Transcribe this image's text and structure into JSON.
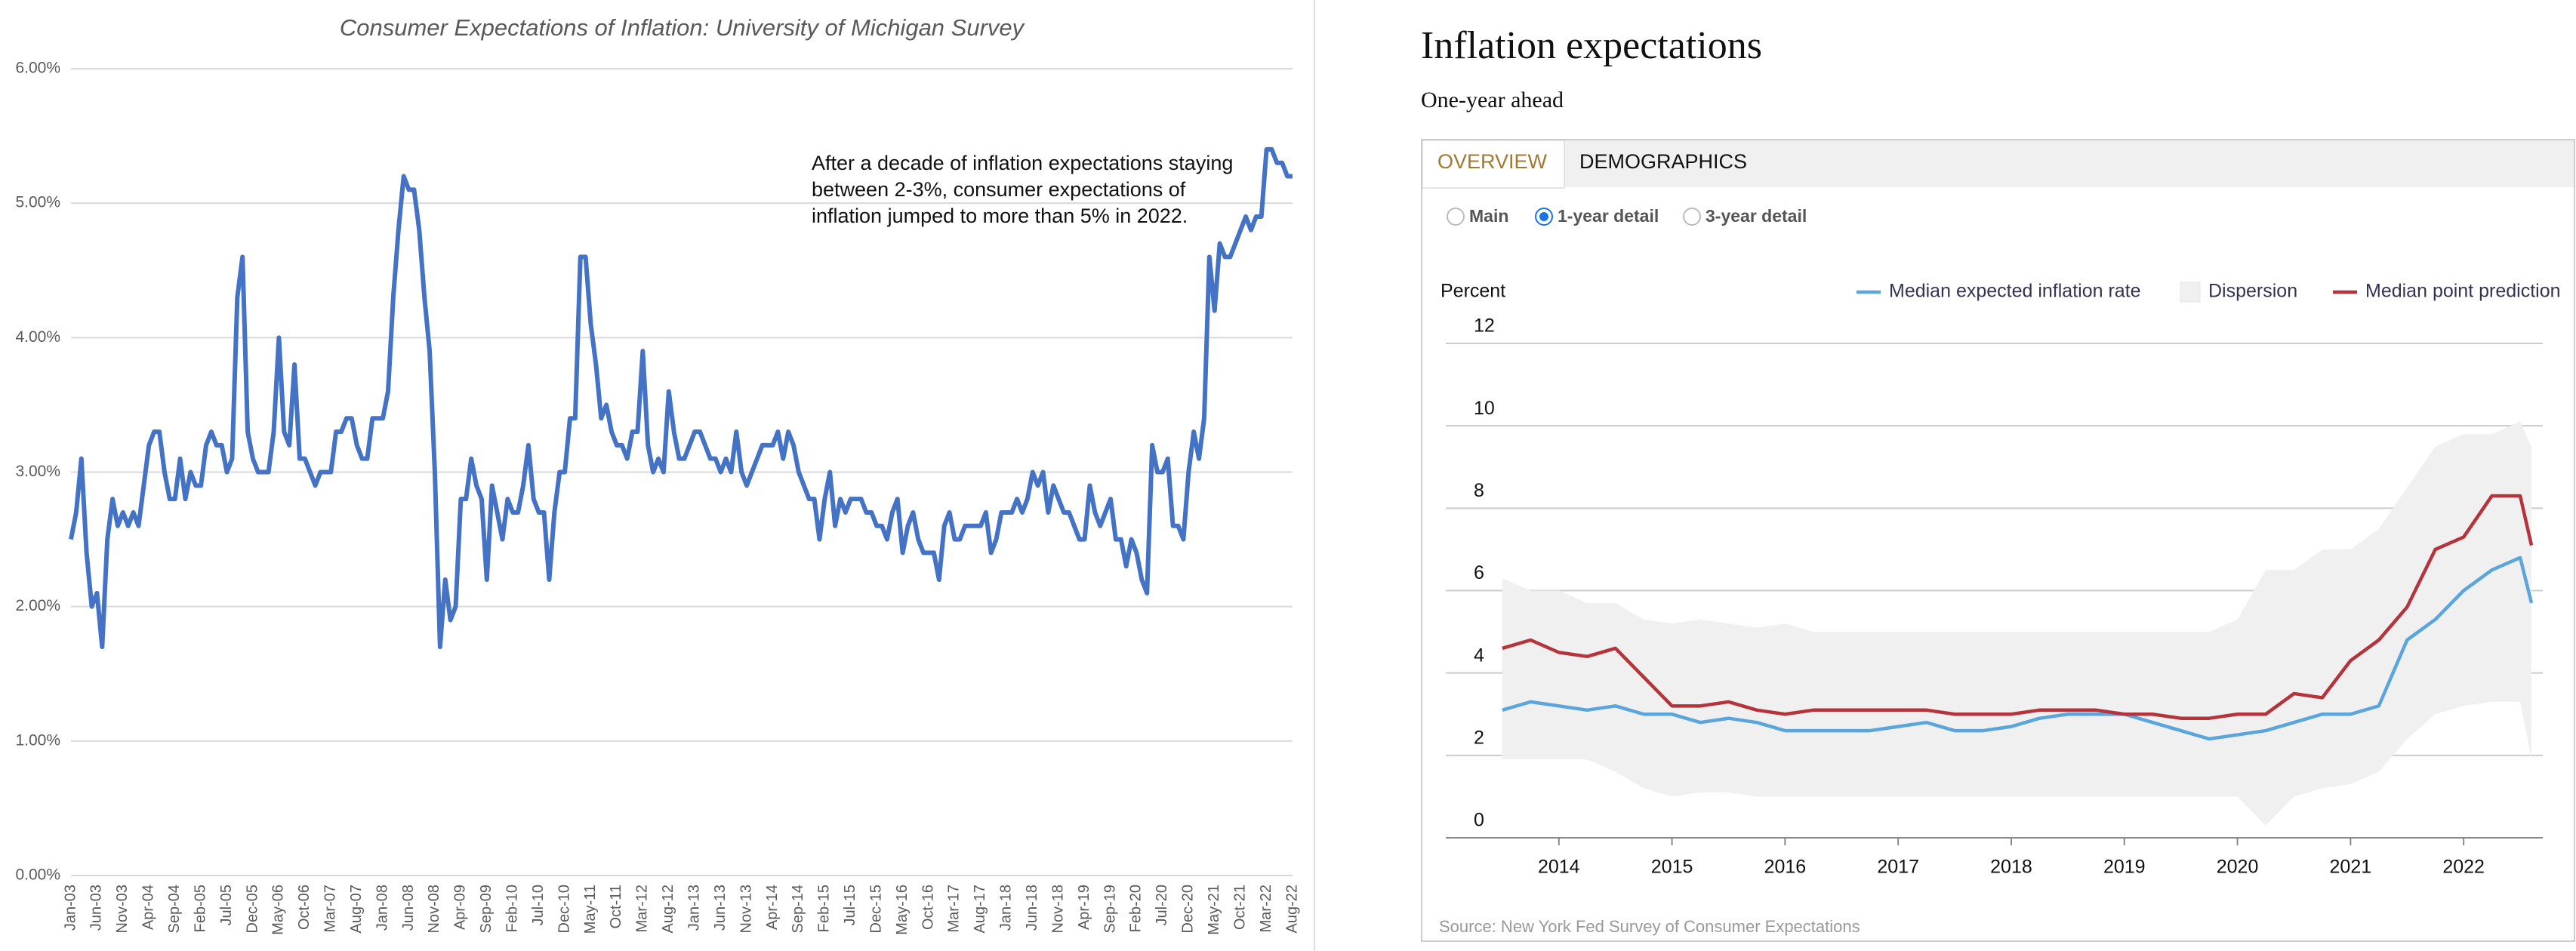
{
  "chart_data": [
    {
      "type": "line",
      "title": "Consumer Expectations of Inflation: University of Michigan Survey",
      "annotation": [
        "After a decade of inflation expectations staying",
        "between 2-3%, consumer expectations of",
        "inflation jumped to more than 5% in 2022."
      ],
      "categories": [
        "Jan-03",
        null,
        null,
        null,
        null,
        "Jun-03",
        null,
        null,
        null,
        null,
        "Nov-03",
        null,
        null,
        null,
        null,
        "Apr-04",
        null,
        null,
        null,
        null,
        "Sep-04",
        null,
        null,
        null,
        null,
        "Feb-05",
        null,
        null,
        null,
        null,
        "Jul-05",
        null,
        null,
        null,
        null,
        "Dec-05",
        null,
        null,
        null,
        null,
        "May-06",
        null,
        null,
        null,
        null,
        "Oct-06",
        null,
        null,
        null,
        null,
        "Mar-07",
        null,
        null,
        null,
        null,
        "Aug-07",
        null,
        null,
        null,
        null,
        "Jan-08",
        null,
        null,
        null,
        null,
        "Jun-08",
        null,
        null,
        null,
        null,
        "Nov-08",
        null,
        null,
        null,
        null,
        "Apr-09",
        null,
        null,
        null,
        null,
        "Sep-09",
        null,
        null,
        null,
        null,
        "Feb-10",
        null,
        null,
        null,
        null,
        "Jul-10",
        null,
        null,
        null,
        null,
        "Dec-10",
        null,
        null,
        null,
        null,
        "May-11",
        null,
        null,
        null,
        null,
        "Oct-11",
        null,
        null,
        null,
        null,
        "Mar-12",
        null,
        null,
        null,
        null,
        "Aug-12",
        null,
        null,
        null,
        null,
        "Jan-13",
        null,
        null,
        null,
        null,
        "Jun-13",
        null,
        null,
        null,
        null,
        "Nov-13",
        null,
        null,
        null,
        null,
        "Apr-14",
        null,
        null,
        null,
        null,
        "Sep-14",
        null,
        null,
        null,
        null,
        "Feb-15",
        null,
        null,
        null,
        null,
        "Jul-15",
        null,
        null,
        null,
        null,
        "Dec-15",
        null,
        null,
        null,
        null,
        "May-16",
        null,
        null,
        null,
        null,
        "Oct-16",
        null,
        null,
        null,
        null,
        "Mar-17",
        null,
        null,
        null,
        null,
        "Aug-17",
        null,
        null,
        null,
        null,
        "Jan-18",
        null,
        null,
        null,
        null,
        "Jun-18",
        null,
        null,
        null,
        null,
        "Nov-18",
        null,
        null,
        null,
        null,
        "Apr-19",
        null,
        null,
        null,
        null,
        "Sep-19",
        null,
        null,
        null,
        null,
        "Feb-20",
        null,
        null,
        null,
        null,
        "Jul-20",
        null,
        null,
        null,
        null,
        "Dec-20",
        null,
        null,
        null,
        null,
        "May-21",
        null,
        null,
        null,
        null,
        "Oct-21",
        null,
        null,
        null,
        null,
        "Mar-22",
        null,
        null,
        null,
        null,
        "Aug-22"
      ],
      "series": [
        {
          "color": "#4472c4",
          "values": [
            2.5,
            2.7,
            3.1,
            2.4,
            2.0,
            2.1,
            1.7,
            2.5,
            2.8,
            2.6,
            2.7,
            2.6,
            2.7,
            2.6,
            2.9,
            3.2,
            3.3,
            3.3,
            3.0,
            2.8,
            2.8,
            3.1,
            2.8,
            3.0,
            2.9,
            2.9,
            3.2,
            3.3,
            3.2,
            3.2,
            3.0,
            3.1,
            4.3,
            4.6,
            3.3,
            3.1,
            3.0,
            3.0,
            3.0,
            3.3,
            4.0,
            3.3,
            3.2,
            3.8,
            3.1,
            3.1,
            3.0,
            2.9,
            3.0,
            3.0,
            3.0,
            3.3,
            3.3,
            3.4,
            3.4,
            3.2,
            3.1,
            3.1,
            3.4,
            3.4,
            3.4,
            3.6,
            4.3,
            4.8,
            5.2,
            5.1,
            5.1,
            4.8,
            4.3,
            3.9,
            3.0,
            1.7,
            2.2,
            1.9,
            2.0,
            2.8,
            2.8,
            3.1,
            2.9,
            2.8,
            2.2,
            2.9,
            2.7,
            2.5,
            2.8,
            2.7,
            2.7,
            2.9,
            3.2,
            2.8,
            2.7,
            2.7,
            2.2,
            2.7,
            3.0,
            3.0,
            3.4,
            3.4,
            4.6,
            4.6,
            4.1,
            3.8,
            3.4,
            3.5,
            3.3,
            3.2,
            3.2,
            3.1,
            3.3,
            3.3,
            3.9,
            3.2,
            3.0,
            3.1,
            3.0,
            3.6,
            3.3,
            3.1,
            3.1,
            3.2,
            3.3,
            3.3,
            3.2,
            3.1,
            3.1,
            3.0,
            3.1,
            3.0,
            3.3,
            3.0,
            2.9,
            3.0,
            3.1,
            3.2,
            3.2,
            3.2,
            3.3,
            3.1,
            3.3,
            3.2,
            3.0,
            2.9,
            2.8,
            2.8,
            2.5,
            2.8,
            3.0,
            2.6,
            2.8,
            2.7,
            2.8,
            2.8,
            2.8,
            2.7,
            2.7,
            2.6,
            2.6,
            2.5,
            2.7,
            2.8,
            2.4,
            2.6,
            2.7,
            2.5,
            2.4,
            2.4,
            2.4,
            2.2,
            2.6,
            2.7,
            2.5,
            2.5,
            2.6,
            2.6,
            2.6,
            2.6,
            2.7,
            2.4,
            2.5,
            2.7,
            2.7,
            2.7,
            2.8,
            2.7,
            2.8,
            3.0,
            2.9,
            3.0,
            2.7,
            2.9,
            2.8,
            2.7,
            2.7,
            2.6,
            2.5,
            2.5,
            2.9,
            2.7,
            2.6,
            2.7,
            2.8,
            2.5,
            2.5,
            2.3,
            2.5,
            2.4,
            2.2,
            2.1,
            3.2,
            3.0,
            3.0,
            3.1,
            2.6,
            2.6,
            2.5,
            3.0,
            3.3,
            3.1,
            3.4,
            4.6,
            4.2,
            4.7,
            4.6,
            4.6,
            4.7,
            4.8,
            4.9,
            4.8,
            4.9,
            4.9,
            5.4,
            5.4,
            5.3,
            5.3,
            5.2,
            5.2
          ]
        }
      ],
      "ylim": [
        0,
        6
      ],
      "yticks": [
        {
          "value": 0,
          "label": "0.00%"
        },
        {
          "value": 1,
          "label": "1.00%"
        },
        {
          "value": 2,
          "label": "2.00%"
        },
        {
          "value": 3,
          "label": "3.00%"
        },
        {
          "value": 4,
          "label": "4.00%"
        },
        {
          "value": 5,
          "label": "5.00%"
        },
        {
          "value": 6,
          "label": "6.00%"
        }
      ],
      "grid": true
    },
    {
      "type": "line",
      "title": "Inflation expectations",
      "subtitle": "One-year ahead",
      "tabs": [
        "OVERVIEW",
        "DEMOGRAPHICS"
      ],
      "options": [
        "Main",
        "1-year detail",
        "3-year detail"
      ],
      "selected_option": 1,
      "ylabel": "Percent",
      "source": "Source: New York Fed Survey of Consumer Expectations",
      "x": [
        2013.5,
        2013.75,
        2014,
        2014.25,
        2014.5,
        2014.75,
        2015,
        2015.25,
        2015.5,
        2015.75,
        2016,
        2016.25,
        2016.5,
        2016.75,
        2017,
        2017.25,
        2017.5,
        2017.75,
        2018,
        2018.25,
        2018.5,
        2018.75,
        2019,
        2019.25,
        2019.5,
        2019.75,
        2020,
        2020.25,
        2020.5,
        2020.75,
        2021,
        2021.25,
        2021.5,
        2021.75,
        2022,
        2022.25,
        2022.5,
        2022.6
      ],
      "series": [
        {
          "name": "Median expected inflation rate",
          "color": "#5aa5dc",
          "values": [
            3.1,
            3.3,
            3.2,
            3.1,
            3.2,
            3.0,
            3.0,
            2.8,
            2.9,
            2.8,
            2.6,
            2.6,
            2.6,
            2.6,
            2.7,
            2.8,
            2.6,
            2.6,
            2.7,
            2.9,
            3.0,
            3.0,
            3.0,
            2.8,
            2.6,
            2.4,
            2.5,
            2.6,
            2.8,
            3.0,
            3.0,
            3.2,
            4.8,
            5.3,
            6.0,
            6.5,
            6.8,
            5.7
          ]
        },
        {
          "name": "Dispersion",
          "color": "#f0f0f0",
          "low": [
            1.9,
            1.9,
            1.9,
            1.9,
            1.6,
            1.2,
            1.0,
            1.1,
            1.1,
            1.0,
            1.0,
            1.0,
            1.0,
            1.0,
            1.0,
            1.0,
            1.0,
            1.0,
            1.0,
            1.0,
            1.0,
            1.0,
            1.0,
            1.0,
            1.0,
            1.0,
            1.0,
            0.3,
            1.0,
            1.2,
            1.3,
            1.6,
            2.4,
            3.0,
            3.2,
            3.3,
            3.3,
            1.9
          ],
          "high": [
            6.3,
            6.0,
            6.0,
            5.7,
            5.7,
            5.3,
            5.2,
            5.3,
            5.2,
            5.1,
            5.2,
            5.0,
            5.0,
            5.0,
            5.0,
            5.0,
            5.0,
            5.0,
            5.0,
            5.0,
            5.0,
            5.0,
            5.0,
            5.0,
            5.0,
            5.0,
            5.3,
            6.5,
            6.5,
            7.0,
            7.0,
            7.5,
            8.5,
            9.5,
            9.8,
            9.8,
            10.1,
            9.5
          ]
        },
        {
          "name": "Median point prediction",
          "color": "#b5333a",
          "values": [
            4.6,
            4.8,
            4.5,
            4.4,
            4.6,
            3.9,
            3.2,
            3.2,
            3.3,
            3.1,
            3.0,
            3.1,
            3.1,
            3.1,
            3.1,
            3.1,
            3.0,
            3.0,
            3.0,
            3.1,
            3.1,
            3.1,
            3.0,
            3.0,
            2.9,
            2.9,
            3.0,
            3.0,
            3.5,
            3.4,
            4.3,
            4.8,
            5.6,
            7.0,
            7.3,
            8.3,
            8.3,
            7.1
          ]
        }
      ],
      "xlim": [
        2013,
        2022.7
      ],
      "xticks": [
        2014,
        2015,
        2016,
        2017,
        2018,
        2019,
        2020,
        2021,
        2022
      ],
      "ylim": [
        0,
        12
      ],
      "yticks": [
        0,
        2,
        4,
        6,
        8,
        10,
        12
      ],
      "grid": true
    }
  ]
}
